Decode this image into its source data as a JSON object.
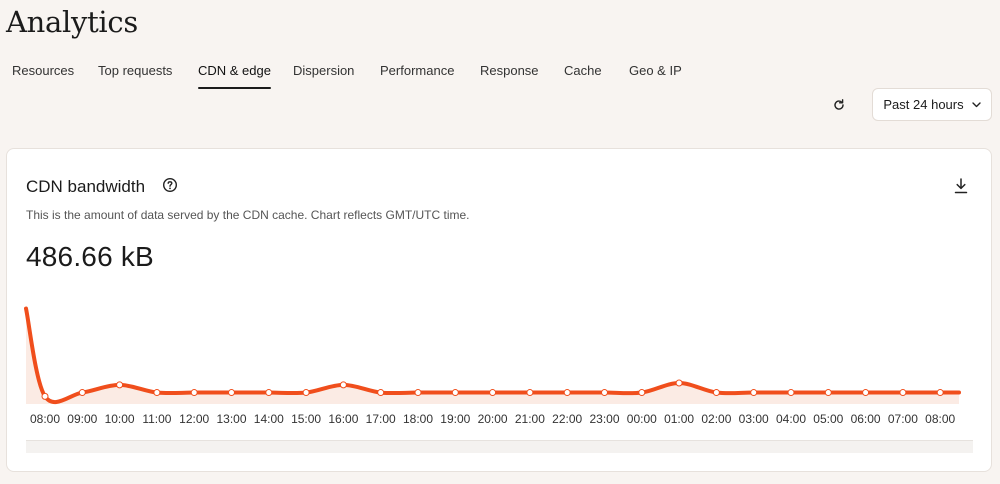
{
  "page": {
    "title": "Analytics"
  },
  "tabs": [
    {
      "label": "Resources",
      "active": false
    },
    {
      "label": "Top requests",
      "active": false
    },
    {
      "label": "CDN & edge",
      "active": true
    },
    {
      "label": "Dispersion",
      "active": false
    },
    {
      "label": "Performance",
      "active": false
    },
    {
      "label": "Response",
      "active": false
    },
    {
      "label": "Cache",
      "active": false
    },
    {
      "label": "Geo & IP",
      "active": false
    }
  ],
  "toolbar": {
    "time_range": "Past 24 hours"
  },
  "card": {
    "title": "CDN bandwidth",
    "description": "This is the amount of data served by the CDN cache. Chart reflects GMT/UTC time.",
    "total": "486.66 kB"
  },
  "colors": {
    "line": "#f04e1c",
    "area": "#fbebe4",
    "background": "#f8f4f1"
  },
  "icons": {
    "refresh": "refresh-icon",
    "help": "help-circle-icon",
    "download": "download-icon",
    "chevron": "chevron-down-icon"
  },
  "chart_data": {
    "type": "area",
    "x": [
      "08:00",
      "09:00",
      "10:00",
      "11:00",
      "12:00",
      "13:00",
      "14:00",
      "15:00",
      "16:00",
      "17:00",
      "18:00",
      "19:00",
      "20:00",
      "21:00",
      "22:00",
      "23:00",
      "00:00",
      "01:00",
      "02:00",
      "03:00",
      "04:00",
      "05:00",
      "06:00",
      "07:00",
      "08:00"
    ],
    "values": [
      8,
      12,
      20,
      12,
      12,
      12,
      12,
      12,
      20,
      12,
      12,
      12,
      12,
      12,
      12,
      12,
      12,
      22,
      12,
      12,
      12,
      12,
      12,
      12,
      12
    ],
    "start_value": 100,
    "ylim": [
      0,
      110
    ],
    "grid": false,
    "legend": "none"
  }
}
